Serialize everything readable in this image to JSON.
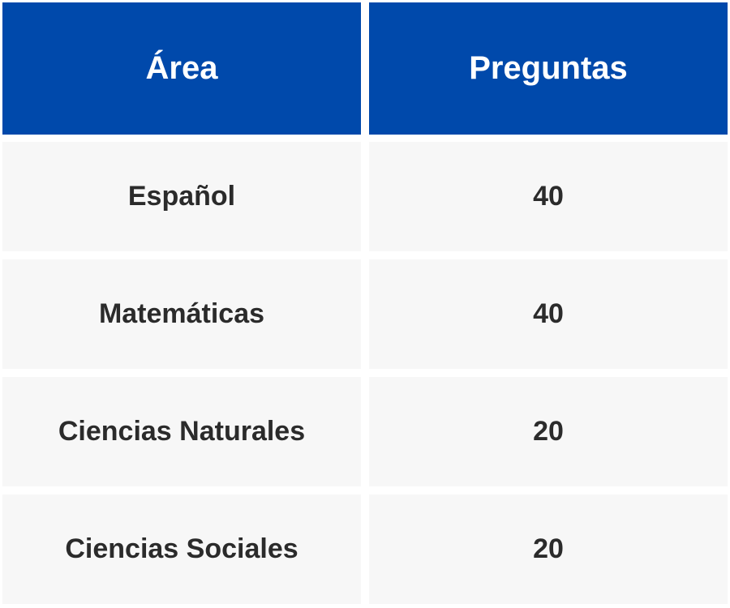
{
  "table": {
    "headers": [
      "Área",
      "Preguntas"
    ],
    "rows": [
      [
        "Español",
        "40"
      ],
      [
        "Matemáticas",
        "40"
      ],
      [
        "Ciencias Naturales",
        "20"
      ],
      [
        "Ciencias Sociales",
        "20"
      ]
    ]
  },
  "colors": {
    "header_bg": "#0049ab",
    "header_text": "#ffffff",
    "row_bg": "#f7f7f7",
    "row_text": "#2b2b2b"
  }
}
